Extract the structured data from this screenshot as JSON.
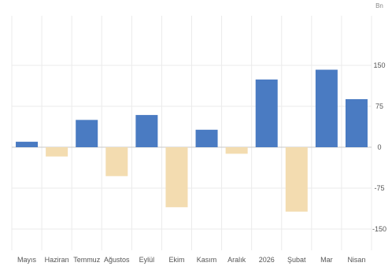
{
  "chart_data": {
    "type": "bar",
    "unit_label": "Bn",
    "categories": [
      "Mayıs",
      "Haziran",
      "Temmuz",
      "Ağustos",
      "Eylül",
      "Ekim",
      "Kasım",
      "Aralık",
      "2026",
      "Şubat",
      "Mar",
      "Nisan"
    ],
    "values": [
      10,
      -17,
      50,
      -53,
      59,
      -110,
      32,
      -12,
      124,
      -118,
      142,
      88
    ],
    "y_ticks": [
      150,
      75,
      0,
      -75,
      -150
    ],
    "y_tick_labels": [
      "150",
      "75",
      "0",
      "-75",
      "-150"
    ],
    "ylim": [
      -170,
      170
    ],
    "grid": true,
    "legend": "none",
    "colors": {
      "positive": "#4a7bc2",
      "negative": "#f3dcb0",
      "grid": "#ebebeb"
    }
  }
}
